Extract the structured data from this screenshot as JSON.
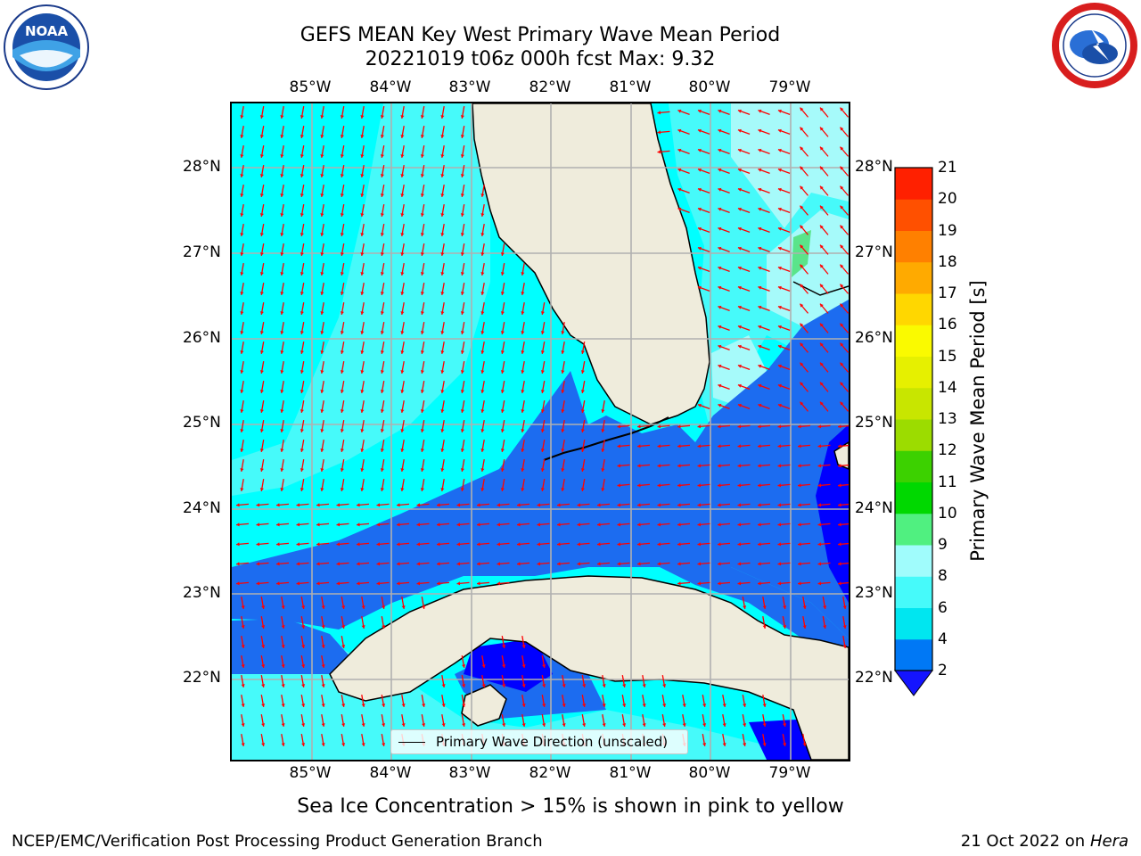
{
  "header": {
    "title_line1": "GEFS MEAN Key West Primary Wave Mean Period",
    "title_line2": "20221019 t06z 000h fcst   Max: 9.32"
  },
  "logos": {
    "left": "NOAA",
    "right": "NATIONAL WEATHER SERVICE"
  },
  "axes": {
    "lon_labels": [
      "85°W",
      "84°W",
      "83°W",
      "82°W",
      "81°W",
      "80°W",
      "79°W"
    ],
    "lat_labels": [
      "28°N",
      "27°N",
      "26°N",
      "25°N",
      "24°N",
      "23°N",
      "22°N"
    ]
  },
  "colorbar": {
    "label": "Primary Wave Mean Period [s]",
    "ticks": [
      "2",
      "4",
      "6",
      "8",
      "9",
      "10",
      "11",
      "12",
      "13",
      "14",
      "15",
      "16",
      "17",
      "18",
      "19",
      "20",
      "21"
    ],
    "colors": [
      "#0078f5",
      "#00e6f0",
      "#46fafa",
      "#a0fcfc",
      "#50f080",
      "#00d800",
      "#3cd100",
      "#9cdc00",
      "#c8e600",
      "#e6f000",
      "#fafa00",
      "#ffd700",
      "#ffaa00",
      "#ff8000",
      "#ff5000",
      "#ff2000",
      "#ff0000"
    ],
    "extend_color": "#1414ff"
  },
  "legend": {
    "label": "Primary Wave Direction (unscaled)"
  },
  "colors": {
    "land": "#efecdc",
    "deep_blue": "#0000ff",
    "blue": "#1c6cf0",
    "cyan": "#00ffff",
    "light_cyan": "#5ffafa",
    "pale_cyan": "#a6fafa",
    "green": "#5ae48a",
    "arrow": "#ff0000",
    "grid": "#b0b0b0"
  },
  "map": {
    "variable": "Primary Wave Mean Period",
    "max_value": 9.32,
    "lon_range": [
      -86.0,
      -78.3
    ],
    "lat_range": [
      21.1,
      28.8
    ]
  },
  "sea_ice_note": "Sea Ice Concentration > 15% is shown in pink to yellow",
  "footer": {
    "left": "NCEP/EMC/Verification Post Processing Product Generation Branch",
    "right_prefix": "21 Oct 2022 on ",
    "right_host": "Hera"
  }
}
